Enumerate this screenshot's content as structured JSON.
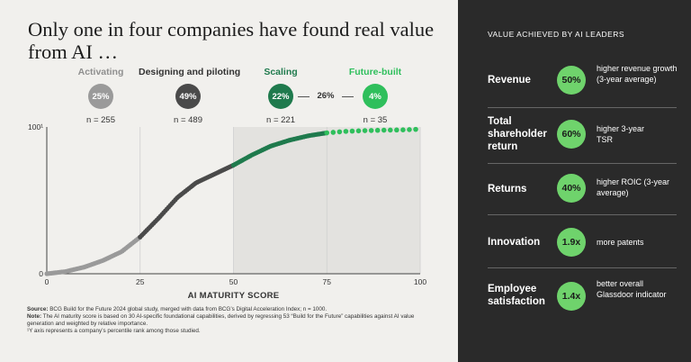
{
  "title": "Only one in four companies have found real value from AI …",
  "stages": [
    {
      "label": "Activating",
      "pct": "25%",
      "n": "n = 255",
      "label_color": "#8f8f8f",
      "circle_color": "#9a9a9a"
    },
    {
      "label": "Designing and piloting",
      "pct": "49%",
      "n": "n = 489",
      "label_color": "#333333",
      "circle_color": "#4a4a4a"
    },
    {
      "label": "Scaling",
      "pct": "22%",
      "n": "n = 221",
      "label_color": "#1f7a4d",
      "circle_color": "#1f7a4d"
    },
    {
      "label": "Future-built",
      "pct": "4%",
      "n": "n = 35",
      "label_color": "#2fbf5c",
      "circle_color": "#2fbf5c"
    }
  ],
  "connector_label": "26%",
  "chart_data": {
    "type": "scatter",
    "xlabel": "AI MATURITY SCORE",
    "ylabel": "",
    "xlim": [
      0,
      100
    ],
    "ylim": [
      0,
      100
    ],
    "x_ticks": [
      "0",
      "25",
      "50",
      "75",
      "100"
    ],
    "y_ticks": [
      "0",
      "100¹"
    ],
    "shaded_region": [
      50,
      100
    ],
    "series": [
      {
        "name": "Activating",
        "color": "#9a9a9a",
        "x_range": [
          0,
          25
        ],
        "x": [
          0,
          5,
          10,
          15,
          20,
          25
        ],
        "y": [
          0,
          1.5,
          4.5,
          9,
          15,
          25
        ]
      },
      {
        "name": "Designing and piloting",
        "color": "#4a4a4a",
        "x_range": [
          25,
          50
        ],
        "x": [
          25,
          30,
          35,
          40,
          45,
          50
        ],
        "y": [
          25,
          38,
          52,
          62,
          68,
          74
        ]
      },
      {
        "name": "Scaling",
        "color": "#1f7a4d",
        "x_range": [
          50,
          75
        ],
        "x": [
          50,
          55,
          60,
          65,
          70,
          75
        ],
        "y": [
          74,
          81,
          87,
          91,
          94,
          96
        ]
      },
      {
        "name": "Future-built",
        "color": "#2fbf5c",
        "x_range": [
          75,
          100
        ],
        "x": [
          75,
          80,
          85,
          90,
          95,
          100
        ],
        "y": [
          96,
          97,
          97.5,
          97.8,
          98,
          98.5
        ]
      }
    ]
  },
  "source_label": "Source:",
  "source_text": "BCG Build for the Future 2024 global study, merged with data from BCG’s Digital Acceleration Index; n = 1000.",
  "note_label": "Note:",
  "note_text": "The AI maturity score is based on 30 AI-specific foundational capabilities, derived by regressing 53 “Build for the Future” capabilities against AI value generation and weighted by relative importance.",
  "footnote": "¹Y axis represents a company’s percentile rank among those studied.",
  "right_panel": {
    "title": "VALUE ACHIEVED BY AI LEADERS",
    "rows": [
      {
        "metric": "Revenue",
        "value": "50%",
        "desc": "higher revenue growth (3-year average)"
      },
      {
        "metric": "Total shareholder return",
        "value": "60%",
        "desc": "higher 3-year TSR"
      },
      {
        "metric": "Returns",
        "value": "40%",
        "desc": "higher ROIC (3-year average)"
      },
      {
        "metric": "Innovation",
        "value": "1.9x",
        "desc": "more patents"
      },
      {
        "metric": "Employee satisfaction",
        "value": "1.4x",
        "desc": "better overall Glassdoor indicator"
      }
    ]
  }
}
